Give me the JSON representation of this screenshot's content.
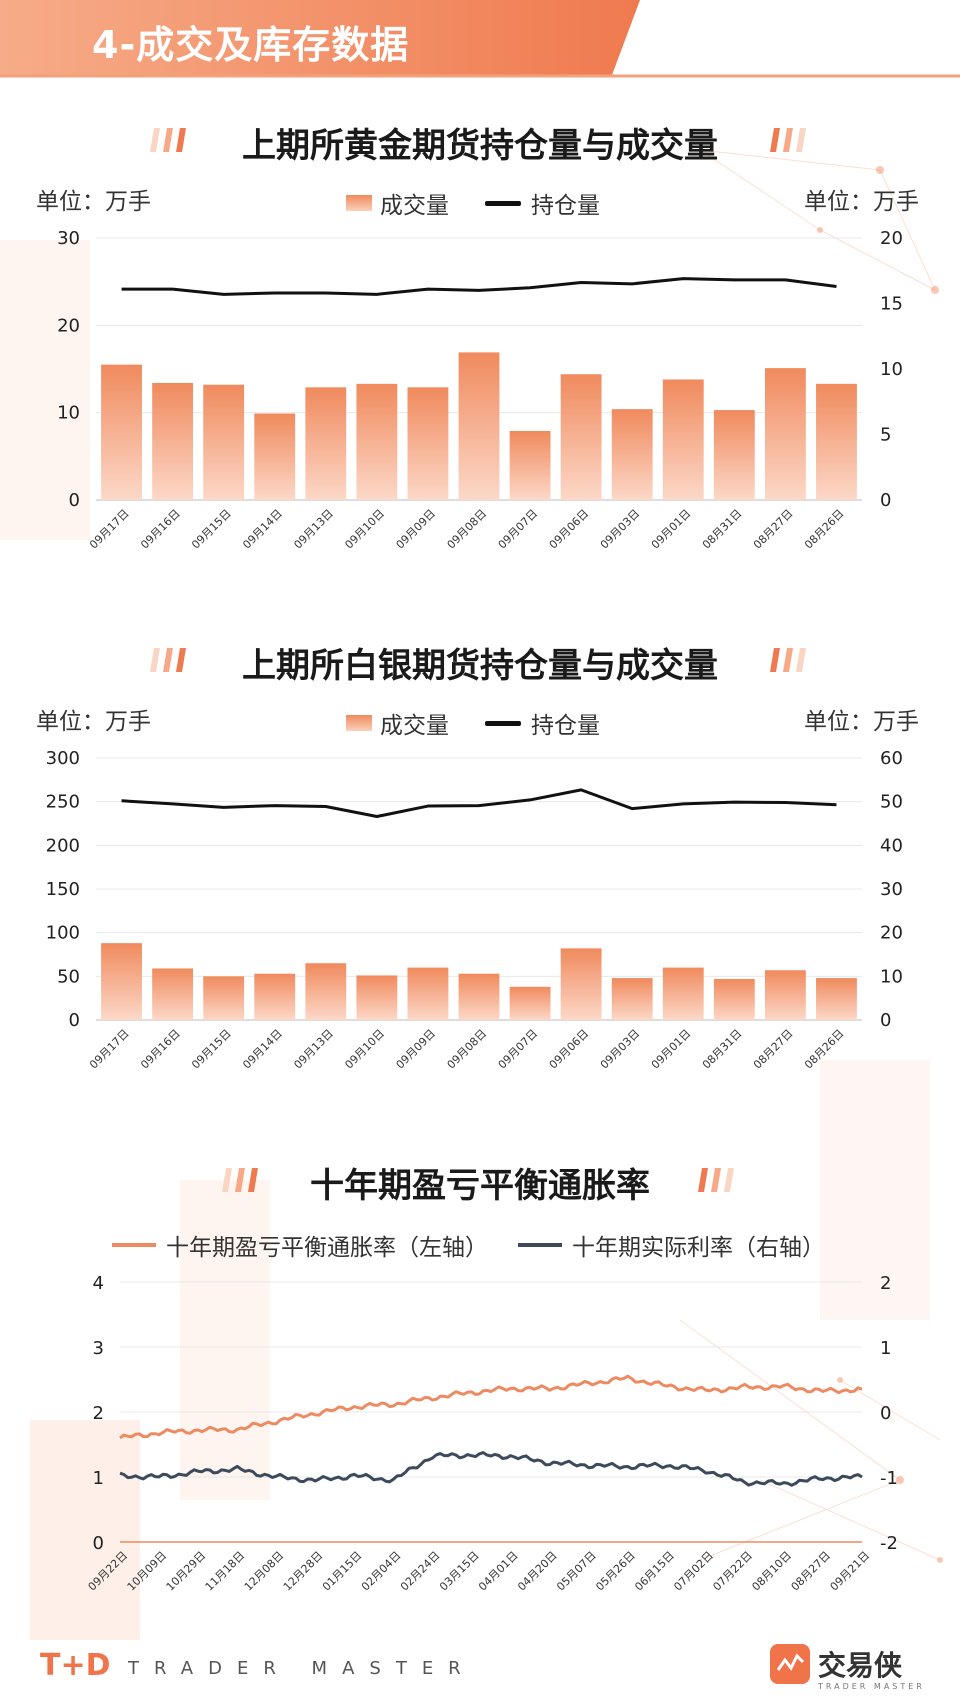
{
  "header": {
    "title": "4-成交及库存数据"
  },
  "colors": {
    "accent": "#f0734a",
    "bar_top": "#f08a5d",
    "bar_bottom": "#fcd8c8",
    "open_interest": "#111111",
    "breakeven": "#ec8b61",
    "real_rate": "#3c4a5c"
  },
  "charts": {
    "gold": {
      "title": "上期所黄金期货持仓量与成交量",
      "unit_left": "单位：万手",
      "unit_right": "单位：万手",
      "legend_bar": "成交量",
      "legend_line": "持仓量"
    },
    "silver": {
      "title": "上期所白银期货持仓量与成交量",
      "unit_left": "单位：万手",
      "unit_right": "单位：万手",
      "legend_bar": "成交量",
      "legend_line": "持仓量"
    },
    "tips": {
      "title": "十年期盈亏平衡通胀率",
      "legend_left": "十年期盈亏平衡通胀率（左轴）",
      "legend_right": "十年期实际利率（右轴）"
    }
  },
  "chart_data": [
    {
      "type": "bar",
      "categories": [
        "09月17日",
        "09月16日",
        "09月15日",
        "09月14日",
        "09月13日",
        "09月10日",
        "09月09日",
        "09月08日",
        "09月07日",
        "09月06日",
        "09月03日",
        "09月01日",
        "08月31日",
        "08月27日",
        "08月26日"
      ],
      "series": [
        {
          "name": "成交量",
          "axis": "left",
          "values": [
            15.5,
            13.4,
            13.2,
            9.9,
            12.9,
            13.3,
            12.9,
            16.9,
            7.9,
            14.4,
            10.4,
            13.8,
            10.3,
            15.1,
            13.3
          ]
        },
        {
          "name": "持仓量",
          "type": "line",
          "axis": "right",
          "values": [
            16.1,
            16.1,
            15.7,
            15.8,
            15.8,
            15.7,
            16.1,
            16.0,
            16.2,
            16.6,
            16.5,
            16.9,
            16.8,
            16.8,
            16.3
          ]
        }
      ],
      "ylim_left": [
        0,
        30
      ],
      "yticks_left": [
        0,
        10,
        20,
        30
      ],
      "ylim_right": [
        0,
        20
      ],
      "yticks_right": [
        0,
        5,
        10,
        15,
        20
      ]
    },
    {
      "type": "bar",
      "categories": [
        "09月17日",
        "09月16日",
        "09月15日",
        "09月14日",
        "09月13日",
        "09月10日",
        "09月09日",
        "09月08日",
        "09月07日",
        "09月06日",
        "09月03日",
        "09月01日",
        "08月31日",
        "08月27日",
        "08月26日"
      ],
      "series": [
        {
          "name": "成交量",
          "axis": "left",
          "values": [
            88,
            59,
            50,
            53,
            65,
            51,
            60,
            53,
            38,
            82,
            48,
            60,
            47,
            57,
            48
          ]
        },
        {
          "name": "持仓量",
          "type": "line",
          "axis": "right",
          "values": [
            50.2,
            49.5,
            48.7,
            49.1,
            48.9,
            46.6,
            49.0,
            49.1,
            50.4,
            52.7,
            48.4,
            49.5,
            49.9,
            49.8,
            49.3
          ]
        }
      ],
      "ylim_left": [
        0,
        300
      ],
      "yticks_left": [
        0,
        50,
        100,
        150,
        200,
        250,
        300
      ],
      "ylim_right": [
        0,
        60
      ],
      "yticks_right": [
        0,
        10,
        20,
        30,
        40,
        50,
        60
      ]
    },
    {
      "type": "line",
      "x": [
        "09月22日",
        "10月09日",
        "10月29日",
        "11月18日",
        "12月08日",
        "12月28日",
        "01月15日",
        "02月04日",
        "02月24日",
        "03月15日",
        "04月01日",
        "04月20日",
        "05月07日",
        "05月26日",
        "06月15日",
        "07月02日",
        "07月22日",
        "08月10日",
        "08月27日",
        "09月21日"
      ],
      "series": [
        {
          "name": "十年期盈亏平衡通胀率（左轴）",
          "axis": "left",
          "values": [
            1.6,
            1.68,
            1.72,
            1.73,
            1.86,
            1.98,
            2.08,
            2.12,
            2.22,
            2.3,
            2.36,
            2.36,
            2.44,
            2.52,
            2.4,
            2.33,
            2.38,
            2.39,
            2.32,
            2.35
          ]
        },
        {
          "name": "十年期实际利率（右轴）",
          "axis": "right",
          "values": [
            -0.98,
            -1.0,
            -0.92,
            -0.88,
            -1.0,
            -1.05,
            -0.98,
            -1.05,
            -0.68,
            -0.66,
            -0.68,
            -0.78,
            -0.82,
            -0.84,
            -0.82,
            -0.9,
            -1.08,
            -1.1,
            -1.02,
            -1.0
          ]
        }
      ],
      "ylim_left": [
        0,
        4
      ],
      "yticks_left": [
        0,
        1,
        2,
        3,
        4
      ],
      "ylim_right": [
        -2,
        2
      ],
      "yticks_right": [
        -2,
        -1,
        0,
        1,
        2
      ]
    }
  ],
  "footer": {
    "logo": "T+D",
    "brand": "TRADER MASTER",
    "app_name": "交易侠",
    "app_sub": "TRADER MASTER"
  }
}
